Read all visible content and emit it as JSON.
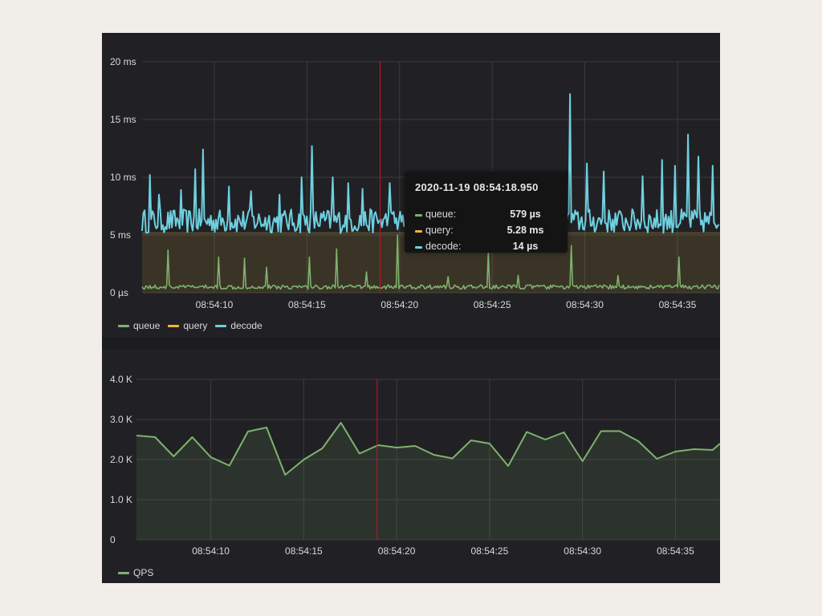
{
  "colors": {
    "queue": "#7eb26d",
    "query": "#eab839",
    "decode": "#6ed0e0",
    "qps": "#7eb26d",
    "cursor": "#c4162a",
    "grid": "#3a3b3f"
  },
  "tooltip": {
    "time": "2020-11-19 08:54:18.950",
    "rows": [
      {
        "name": "queue:",
        "value": "579 µs",
        "color": "#7eb26d"
      },
      {
        "name": "query:",
        "value": "5.28 ms",
        "color": "#eab839"
      },
      {
        "name": "decode:",
        "value": "14 µs",
        "color": "#6ed0e0"
      }
    ]
  },
  "chart_data": [
    {
      "type": "line",
      "title": "",
      "xlabel": "",
      "ylabel": "",
      "x_ticks": [
        "08:54:10",
        "08:54:15",
        "08:54:20",
        "08:54:25",
        "08:54:30",
        "08:54:35"
      ],
      "y_ticks": [
        "0 µs",
        "5 ms",
        "10 ms",
        "15 ms",
        "20 ms"
      ],
      "ylim": [
        0,
        20
      ],
      "y_unit": "ms",
      "xlim_seconds": [
        6.1,
        37.3
      ],
      "grid": true,
      "legend_position": "bottom-left",
      "cursor_x_seconds": 18.95,
      "series": [
        {
          "name": "queue",
          "color": "#7eb26d",
          "base_value": 0.5,
          "spikes": [
            [
              7.5,
              3.7
            ],
            [
              10.2,
              3.1
            ],
            [
              11.6,
              3.0
            ],
            [
              12.8,
              2.2
            ],
            [
              15.1,
              3.1
            ],
            [
              16.6,
              3.8
            ],
            [
              18.2,
              1.8
            ],
            [
              19.9,
              5.0
            ],
            [
              22.6,
              1.4
            ],
            [
              24.8,
              3.5
            ],
            [
              26.4,
              1.5
            ],
            [
              29.3,
              4.1
            ],
            [
              31.8,
              1.5
            ],
            [
              35.1,
              3.1
            ]
          ]
        },
        {
          "name": "query",
          "color": "#eab839",
          "base_value": 5.2
        },
        {
          "name": "decode",
          "color": "#6ed0e0",
          "base_value": 6.2,
          "spikes": [
            [
              6.5,
              10.2
            ],
            [
              7.0,
              8.5
            ],
            [
              8.2,
              8.9
            ],
            [
              9.0,
              10.7
            ],
            [
              9.4,
              12.4
            ],
            [
              10.8,
              9.2
            ],
            [
              12.0,
              8.8
            ],
            [
              13.5,
              8.5
            ],
            [
              14.7,
              10.0
            ],
            [
              15.3,
              12.7
            ],
            [
              16.4,
              10.0
            ],
            [
              17.2,
              9.5
            ],
            [
              18.0,
              9.0
            ],
            [
              19.5,
              9.5
            ],
            [
              20.4,
              10.1
            ],
            [
              29.2,
              17.2
            ],
            [
              30.1,
              11.2
            ],
            [
              31.0,
              10.5
            ],
            [
              33.1,
              10.1
            ],
            [
              34.2,
              11.5
            ],
            [
              34.9,
              11.0
            ],
            [
              35.6,
              13.7
            ],
            [
              36.1,
              11.8
            ],
            [
              36.9,
              11.0
            ]
          ]
        }
      ]
    },
    {
      "type": "area",
      "title": "",
      "xlabel": "",
      "ylabel": "",
      "x_ticks": [
        "08:54:10",
        "08:54:15",
        "08:54:20",
        "08:54:25",
        "08:54:30",
        "08:54:35"
      ],
      "y_ticks": [
        "0",
        "1.0 K",
        "2.0 K",
        "3.0 K",
        "4.0 K"
      ],
      "ylim": [
        0,
        4000
      ],
      "xlim_seconds": [
        6.0,
        37.4
      ],
      "grid": true,
      "legend_position": "bottom-left",
      "cursor_x_seconds": 18.95,
      "series": [
        {
          "name": "QPS",
          "color": "#7eb26d",
          "x_seconds": [
            6,
            7,
            8,
            9,
            10,
            11,
            12,
            13,
            14,
            15,
            16,
            17,
            18,
            19,
            20,
            21,
            22,
            23,
            24,
            25,
            26,
            27,
            28,
            29,
            30,
            31,
            32,
            33,
            34,
            35,
            36,
            37,
            37.4
          ],
          "values": [
            2600,
            2560,
            2080,
            2560,
            2060,
            1850,
            2700,
            2800,
            1620,
            2000,
            2280,
            2920,
            2150,
            2360,
            2300,
            2340,
            2120,
            2030,
            2480,
            2400,
            1840,
            2690,
            2500,
            2680,
            1960,
            2710,
            2710,
            2460,
            2020,
            2200,
            2260,
            2240,
            2400
          ]
        }
      ]
    }
  ]
}
